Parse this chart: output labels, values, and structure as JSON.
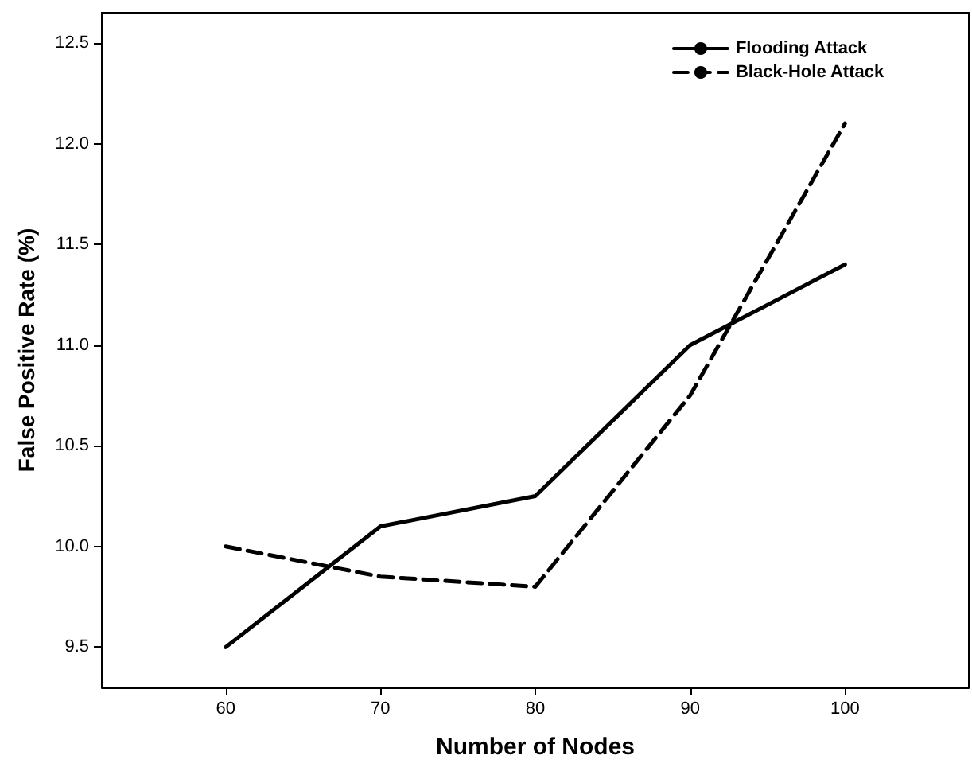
{
  "chart_data": {
    "type": "line",
    "xlabel": "Number of Nodes",
    "ylabel": "False Positive Rate (%)",
    "x": [
      60,
      70,
      80,
      90,
      100
    ],
    "series": [
      {
        "name": "Flooding Attack",
        "color": "#000000",
        "line_style": "solid",
        "values": [
          9.5,
          10.1,
          10.25,
          11.0,
          11.4
        ]
      },
      {
        "name": "Black-Hole Attack",
        "color": "#000000",
        "line_style": "dashed",
        "values": [
          10.0,
          9.85,
          9.8,
          10.75,
          12.1
        ]
      }
    ],
    "xlim": [
      52,
      108
    ],
    "xticks": [
      60,
      70,
      80,
      90,
      100
    ],
    "ylim": [
      9.3,
      12.65
    ],
    "yticks": [
      {
        "value": 9.5,
        "label": "9.5"
      },
      {
        "value": 10,
        "label": "10.0"
      },
      {
        "value": 10.5,
        "label": "10.5"
      },
      {
        "value": 11,
        "label": "11.0"
      },
      {
        "value": 11.5,
        "label": "11.5"
      },
      {
        "value": 12,
        "label": "12.0"
      },
      {
        "value": 12.5,
        "label": "12.5"
      }
    ],
    "grid": false,
    "legend": "top right",
    "marker": "none"
  }
}
